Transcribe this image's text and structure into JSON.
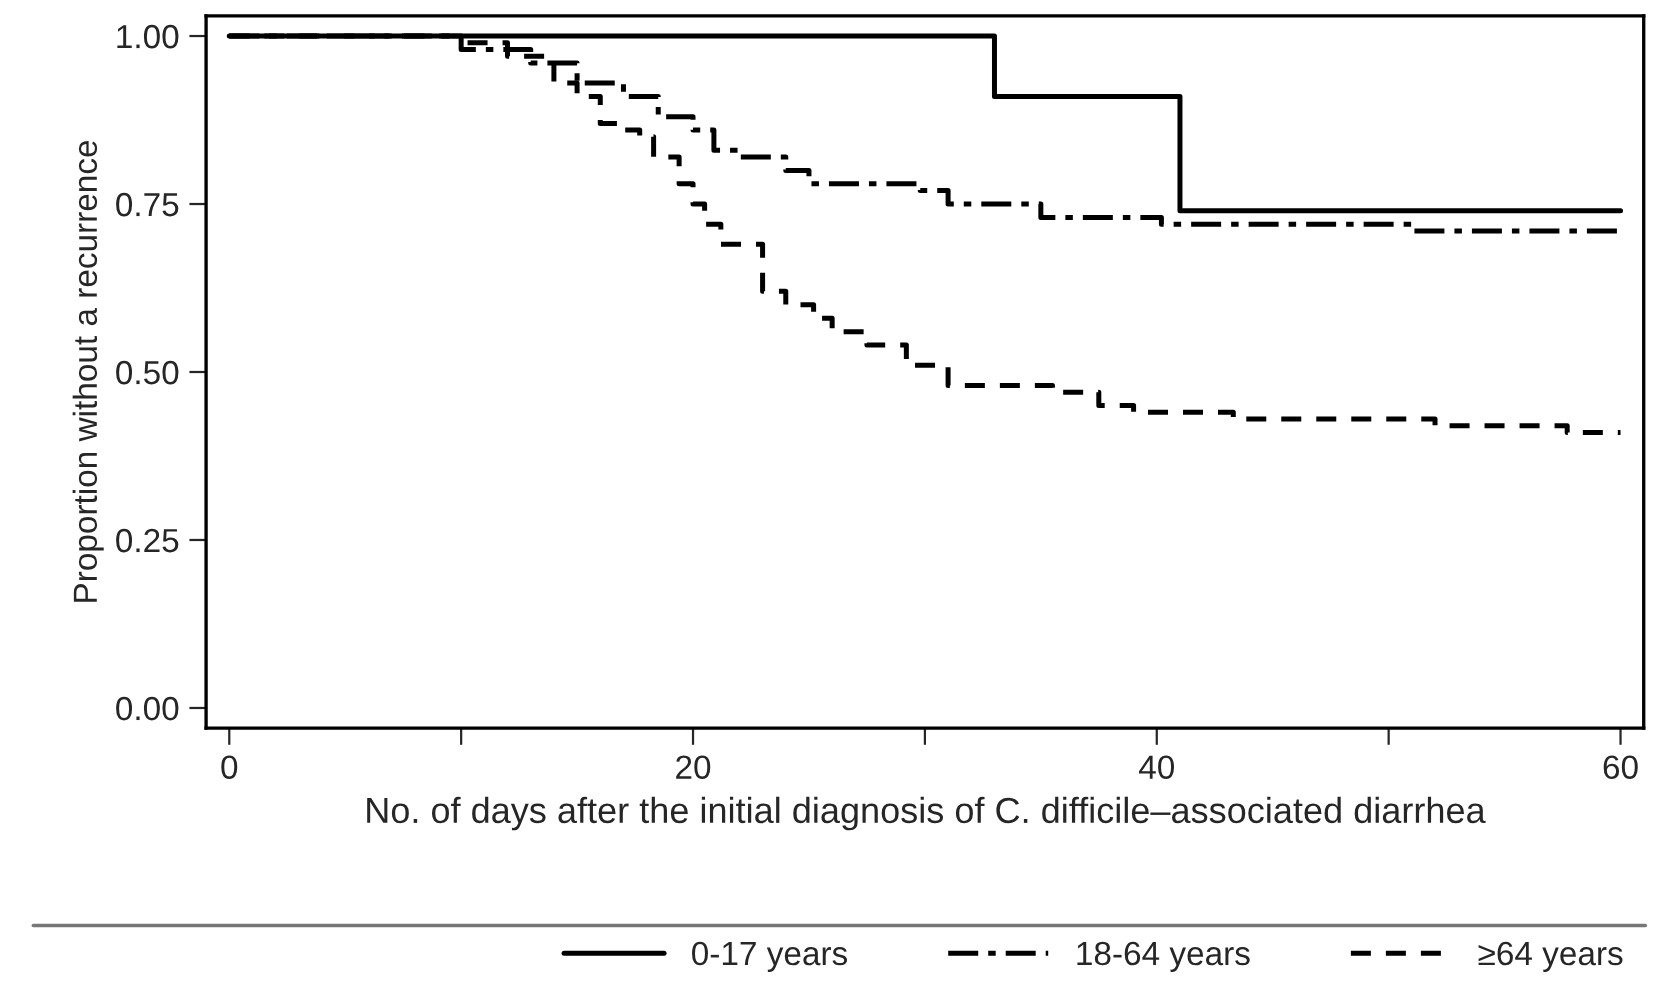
{
  "chart_data": {
    "type": "step",
    "xlabel": "No. of days after the initial diagnosis of C. difficile–associated diarrhea",
    "ylabel": "Proportion without a recurrence",
    "xlim": [
      -1,
      61
    ],
    "xticks": [
      0,
      {
        "value": 10,
        "label": null
      },
      20,
      {
        "value": 30,
        "label": null
      },
      40,
      {
        "value": 50,
        "label": null
      },
      60
    ],
    "ylim": [
      -0.03,
      1.03
    ],
    "yticks": [
      {
        "value": 0,
        "label": "0.00"
      },
      0.25,
      {
        "value": 0.5,
        "label": "0.50"
      },
      0.75,
      {
        "value": 1,
        "label": "1.00"
      }
    ],
    "grid": false,
    "legend": "bottom right",
    "series": [
      {
        "name": "0-17 years",
        "color": "#000000",
        "line_style": "solid",
        "x": [
          0,
          33,
          41,
          60
        ],
        "values": [
          1.0,
          0.91,
          0.74,
          0.74
        ]
      },
      {
        "name": "18-64 years",
        "color": "#000000",
        "line_style": "dashdot",
        "x": [
          0,
          10,
          13,
          15,
          17,
          18.5,
          20,
          20.9,
          22,
          24,
          25,
          29.8,
          31,
          35,
          40.2,
          51,
          60
        ],
        "values": [
          1.0,
          0.98,
          0.96,
          0.93,
          0.91,
          0.88,
          0.86,
          0.83,
          0.82,
          0.8,
          0.78,
          0.77,
          0.75,
          0.73,
          0.72,
          0.71,
          0.71
        ]
      },
      {
        "name": "≥64 years",
        "color": "#000000",
        "line_style": "dashed",
        "x": [
          0,
          10,
          12,
          14,
          15,
          16,
          16.8,
          17.7,
          18.3,
          19.4,
          20,
          20.5,
          21.2,
          23,
          24,
          25.2,
          26,
          27.5,
          29.2,
          31,
          35.5,
          37.5,
          39,
          43.3,
          52,
          57.7,
          60
        ],
        "values": [
          1.0,
          0.99,
          0.97,
          0.93,
          0.91,
          0.87,
          0.86,
          0.85,
          0.82,
          0.78,
          0.75,
          0.72,
          0.69,
          0.62,
          0.6,
          0.58,
          0.56,
          0.54,
          0.51,
          0.48,
          0.47,
          0.45,
          0.44,
          0.43,
          0.42,
          0.41,
          0.41
        ]
      }
    ]
  }
}
